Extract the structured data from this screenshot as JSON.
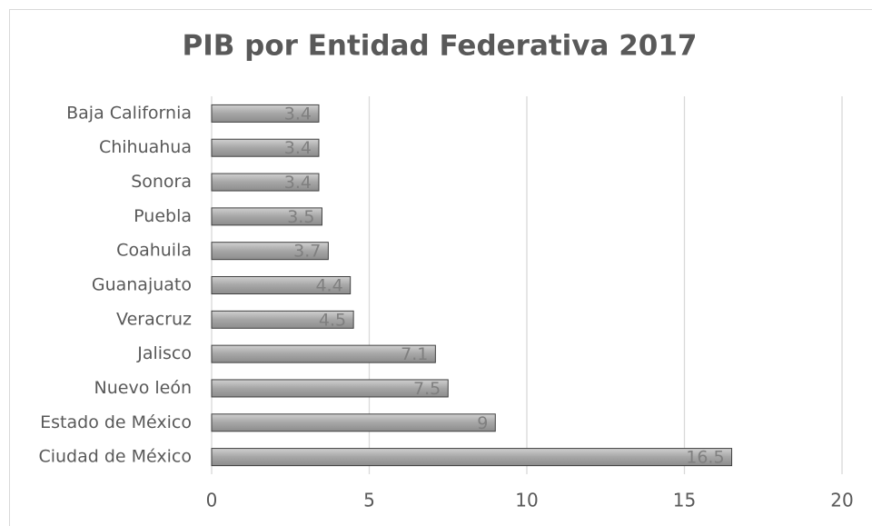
{
  "chart_data": {
    "type": "bar",
    "orientation": "horizontal",
    "title": "PIB por Entidad Federativa 2017",
    "categories": [
      "Baja California",
      "Chihuahua",
      "Sonora",
      "Puebla",
      "Coahuila",
      "Guanajuato",
      "Veracruz",
      "Jalisco",
      "Nuevo león",
      "Estado de México",
      "Ciudad de México"
    ],
    "values": [
      3.4,
      3.4,
      3.4,
      3.5,
      3.7,
      4.4,
      4.5,
      7.1,
      7.5,
      9,
      16.5
    ],
    "color": "#a6a6a6",
    "xlim": [
      0,
      20
    ],
    "xticks": [
      0,
      5,
      10,
      15,
      20
    ],
    "grid": true
  }
}
